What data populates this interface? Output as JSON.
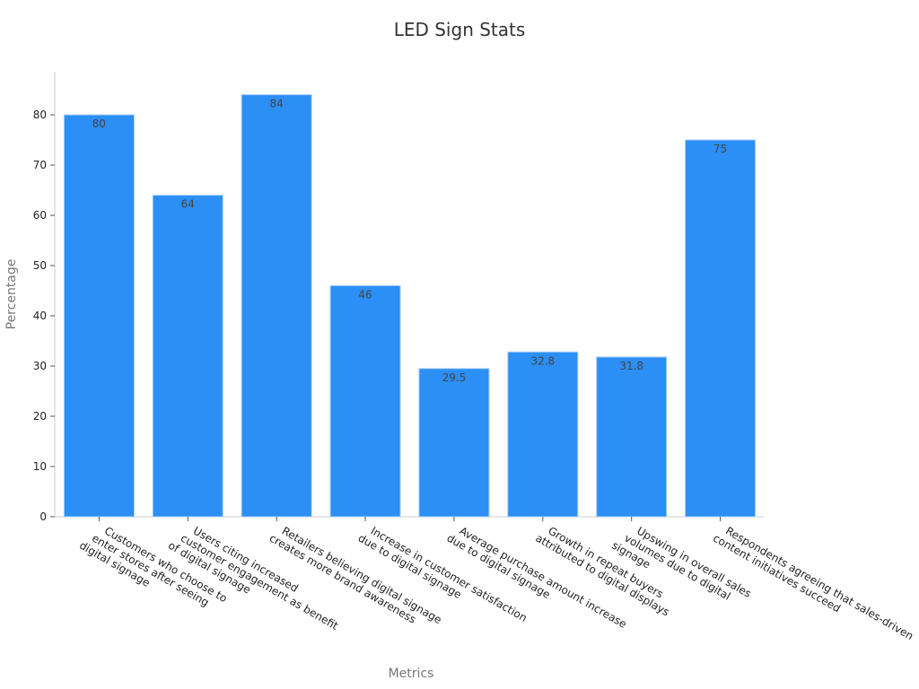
{
  "chart_data": {
    "type": "bar",
    "title": "LED Sign Stats",
    "xlabel": "Metrics",
    "ylabel": "Percentage",
    "ylim": [
      0,
      88
    ],
    "yticks": [
      0,
      10,
      20,
      30,
      40,
      50,
      60,
      70,
      80
    ],
    "grid": false,
    "bar_color": "#2b8ff5",
    "bar_edge_color": "#a8cdf5",
    "categories": [
      [
        "Customers who choose to",
        "enter stores after seeing",
        "digital signage"
      ],
      [
        "Users citing increased",
        "customer engagement as benefit",
        "of digital signage"
      ],
      [
        "Retailers believing digital signage",
        "creates more brand awareness"
      ],
      [
        "Increase in customer satisfaction",
        "due to digital signage"
      ],
      [
        "Average purchase amount increase",
        "due to digital signage"
      ],
      [
        "Growth in repeat buyers",
        "attributed to digital displays"
      ],
      [
        "Upswing in overall sales",
        "volumes due to digital",
        "signage"
      ],
      [
        "Respondents agreeing that sales-driven",
        "content initiatives succeed"
      ]
    ],
    "values": [
      80,
      64,
      84,
      46,
      29.5,
      32.8,
      31.8,
      75
    ],
    "value_labels": [
      "80",
      "64",
      "84",
      "46",
      "29.5",
      "32.8",
      "31.8",
      "75"
    ]
  }
}
